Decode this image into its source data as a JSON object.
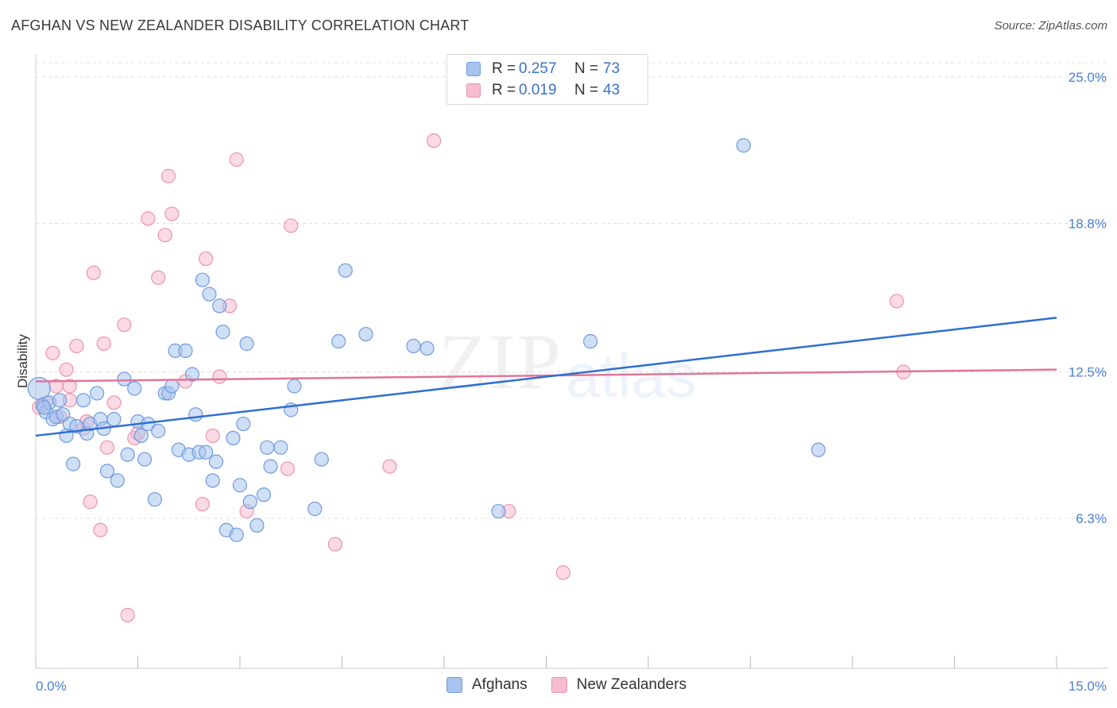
{
  "header": {
    "title": "AFGHAN VS NEW ZEALANDER DISABILITY CORRELATION CHART",
    "source": "Source: ZipAtlas.com"
  },
  "watermark": {
    "zip": "ZIP",
    "atlas": "atlas"
  },
  "legend": {
    "rows": [
      {
        "r_label": "R =",
        "r_value": "0.257",
        "n_label": "N =",
        "n_value": "73"
      },
      {
        "r_label": "R =",
        "r_value": "0.019",
        "n_label": "N =",
        "n_value": "43"
      }
    ]
  },
  "bottom_legend": {
    "afghans": "Afghans",
    "new_zealanders": "New Zealanders"
  },
  "colors": {
    "afghan_fill": "#a8c4ee",
    "afghan_stroke": "#6f9ae0",
    "afghan_line": "#2f6fd0",
    "nz_fill": "#f7bccd",
    "nz_stroke": "#ec93ad",
    "nz_line": "#e0759a",
    "tick_text": "#4a7fd4",
    "grid": "#dddddd"
  },
  "chart_data": {
    "type": "scatter",
    "title": "AFGHAN VS NEW ZEALANDER DISABILITY CORRELATION CHART",
    "xlabel": "",
    "ylabel": "Disability",
    "xlim": [
      0,
      15
    ],
    "ylim": [
      0,
      26.6
    ],
    "x_tick_labels": [
      "0.0%",
      "15.0%"
    ],
    "y_ticks": [
      6.3,
      12.5,
      18.8,
      25.0
    ],
    "y_tick_labels": [
      "6.3%",
      "12.5%",
      "18.8%",
      "25.0%"
    ],
    "grid": "horizontal dashed",
    "series": [
      {
        "name": "Afghans",
        "trend": {
          "x": [
            0,
            15
          ],
          "y": [
            9.8,
            14.8
          ]
        },
        "points": [
          [
            0.05,
            11.8
          ],
          [
            0.1,
            11.1
          ],
          [
            0.15,
            10.8
          ],
          [
            0.2,
            11.2
          ],
          [
            0.25,
            10.5
          ],
          [
            0.3,
            10.6
          ],
          [
            0.35,
            11.3
          ],
          [
            0.4,
            10.7
          ],
          [
            0.45,
            9.8
          ],
          [
            0.5,
            10.3
          ],
          [
            0.55,
            8.6
          ],
          [
            0.6,
            10.2
          ],
          [
            0.7,
            11.3
          ],
          [
            0.75,
            9.9
          ],
          [
            0.8,
            10.3
          ],
          [
            0.9,
            11.6
          ],
          [
            0.95,
            10.5
          ],
          [
            1.0,
            10.1
          ],
          [
            1.05,
            8.3
          ],
          [
            1.15,
            10.5
          ],
          [
            1.2,
            7.9
          ],
          [
            1.3,
            12.2
          ],
          [
            1.35,
            9.0
          ],
          [
            1.45,
            11.8
          ],
          [
            1.5,
            10.4
          ],
          [
            1.55,
            9.8
          ],
          [
            1.6,
            8.8
          ],
          [
            1.65,
            10.3
          ],
          [
            1.75,
            7.1
          ],
          [
            1.8,
            10.0
          ],
          [
            1.9,
            11.6
          ],
          [
            1.95,
            11.6
          ],
          [
            2.0,
            11.9
          ],
          [
            2.05,
            13.4
          ],
          [
            2.1,
            9.2
          ],
          [
            2.2,
            13.4
          ],
          [
            2.25,
            9.0
          ],
          [
            2.3,
            12.4
          ],
          [
            2.35,
            10.7
          ],
          [
            2.4,
            9.1
          ],
          [
            2.5,
            9.1
          ],
          [
            2.45,
            16.4
          ],
          [
            2.6,
            7.9
          ],
          [
            2.55,
            15.8
          ],
          [
            2.65,
            8.7
          ],
          [
            2.7,
            15.3
          ],
          [
            2.75,
            14.2
          ],
          [
            2.8,
            5.8
          ],
          [
            2.9,
            9.7
          ],
          [
            2.95,
            5.6
          ],
          [
            3.0,
            7.7
          ],
          [
            3.05,
            10.3
          ],
          [
            3.1,
            13.7
          ],
          [
            3.15,
            7.0
          ],
          [
            3.25,
            6.0
          ],
          [
            3.35,
            7.3
          ],
          [
            3.4,
            9.3
          ],
          [
            3.45,
            8.5
          ],
          [
            3.6,
            9.3
          ],
          [
            3.75,
            10.9
          ],
          [
            3.8,
            11.9
          ],
          [
            4.1,
            6.7
          ],
          [
            4.2,
            8.8
          ],
          [
            4.45,
            13.8
          ],
          [
            4.55,
            16.8
          ],
          [
            4.85,
            14.1
          ],
          [
            5.55,
            13.6
          ],
          [
            5.75,
            13.5
          ],
          [
            6.8,
            6.6
          ],
          [
            8.15,
            13.8
          ],
          [
            10.4,
            22.1
          ],
          [
            11.5,
            9.2
          ],
          [
            0.12,
            11.0
          ]
        ]
      },
      {
        "name": "New Zealanders",
        "trend": {
          "x": [
            0,
            15
          ],
          "y": [
            12.1,
            12.6
          ]
        },
        "points": [
          [
            0.05,
            11.0
          ],
          [
            0.15,
            11.2
          ],
          [
            0.25,
            13.3
          ],
          [
            0.3,
            11.9
          ],
          [
            0.35,
            10.6
          ],
          [
            0.45,
            12.6
          ],
          [
            0.5,
            11.3
          ],
          [
            0.6,
            13.6
          ],
          [
            0.7,
            10.1
          ],
          [
            0.75,
            10.4
          ],
          [
            0.8,
            7.0
          ],
          [
            0.85,
            16.7
          ],
          [
            0.95,
            5.8
          ],
          [
            1.0,
            13.7
          ],
          [
            1.05,
            9.3
          ],
          [
            1.15,
            11.2
          ],
          [
            1.3,
            14.5
          ],
          [
            1.35,
            2.2
          ],
          [
            1.45,
            9.7
          ],
          [
            1.5,
            9.9
          ],
          [
            1.65,
            19.0
          ],
          [
            1.8,
            16.5
          ],
          [
            1.9,
            18.3
          ],
          [
            1.95,
            20.8
          ],
          [
            2.0,
            19.2
          ],
          [
            2.2,
            12.1
          ],
          [
            2.45,
            6.9
          ],
          [
            2.5,
            17.3
          ],
          [
            2.6,
            9.8
          ],
          [
            2.85,
            15.3
          ],
          [
            2.95,
            21.5
          ],
          [
            3.1,
            6.6
          ],
          [
            3.7,
            8.4
          ],
          [
            3.75,
            18.7
          ],
          [
            4.4,
            5.2
          ],
          [
            5.2,
            8.5
          ],
          [
            5.85,
            22.3
          ],
          [
            6.95,
            6.6
          ],
          [
            7.75,
            4.0
          ],
          [
            12.65,
            15.5
          ],
          [
            12.75,
            12.5
          ],
          [
            0.5,
            11.9
          ],
          [
            2.7,
            12.3
          ]
        ]
      }
    ]
  }
}
